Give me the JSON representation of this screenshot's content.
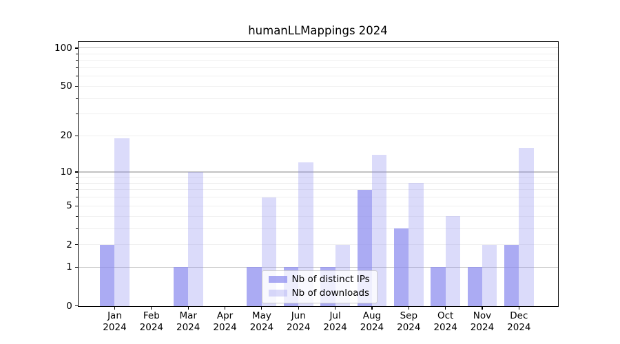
{
  "title": "humanLLMappings 2024",
  "chart_data": {
    "type": "bar",
    "title": "humanLLMappings 2024",
    "yscale": "log1p",
    "ylim": [
      0,
      112
    ],
    "grid": true,
    "legend_position": "lower center (inside plot)",
    "categories": [
      "Jan",
      "Feb",
      "Mar",
      "Apr",
      "May",
      "Jun",
      "Jul",
      "Aug",
      "Sep",
      "Oct",
      "Nov",
      "Dec"
    ],
    "x_tick_year": "2024",
    "series": [
      {
        "name": "Nb of distinct IPs",
        "color": "rgba(136,136,238,0.7)",
        "values": [
          2,
          0,
          1,
          0,
          1,
          1,
          1,
          7,
          3,
          1,
          1,
          2
        ]
      },
      {
        "name": "Nb of downloads",
        "color": "rgba(136,136,238,0.3)",
        "values": [
          19,
          0,
          10,
          0,
          6,
          12,
          2,
          14,
          8,
          4,
          2,
          16
        ]
      }
    ],
    "ytick_values": [
      0,
      1,
      2,
      5,
      10,
      20,
      50,
      100
    ],
    "ytick_labels": [
      "0",
      "1",
      "2",
      "5",
      "10",
      "20",
      "50",
      "100"
    ],
    "major_grid_values": [
      1,
      10,
      100
    ],
    "minor_grid_values": [
      2,
      3,
      4,
      5,
      6,
      7,
      8,
      9,
      20,
      30,
      40,
      50,
      60,
      70,
      80,
      90
    ]
  },
  "colors": {
    "bar_base": "#8888ee",
    "major_grid": "#c2c2c2",
    "minor_grid": "#efefef",
    "spine": "#000000",
    "legend_border": "#cccccc"
  }
}
